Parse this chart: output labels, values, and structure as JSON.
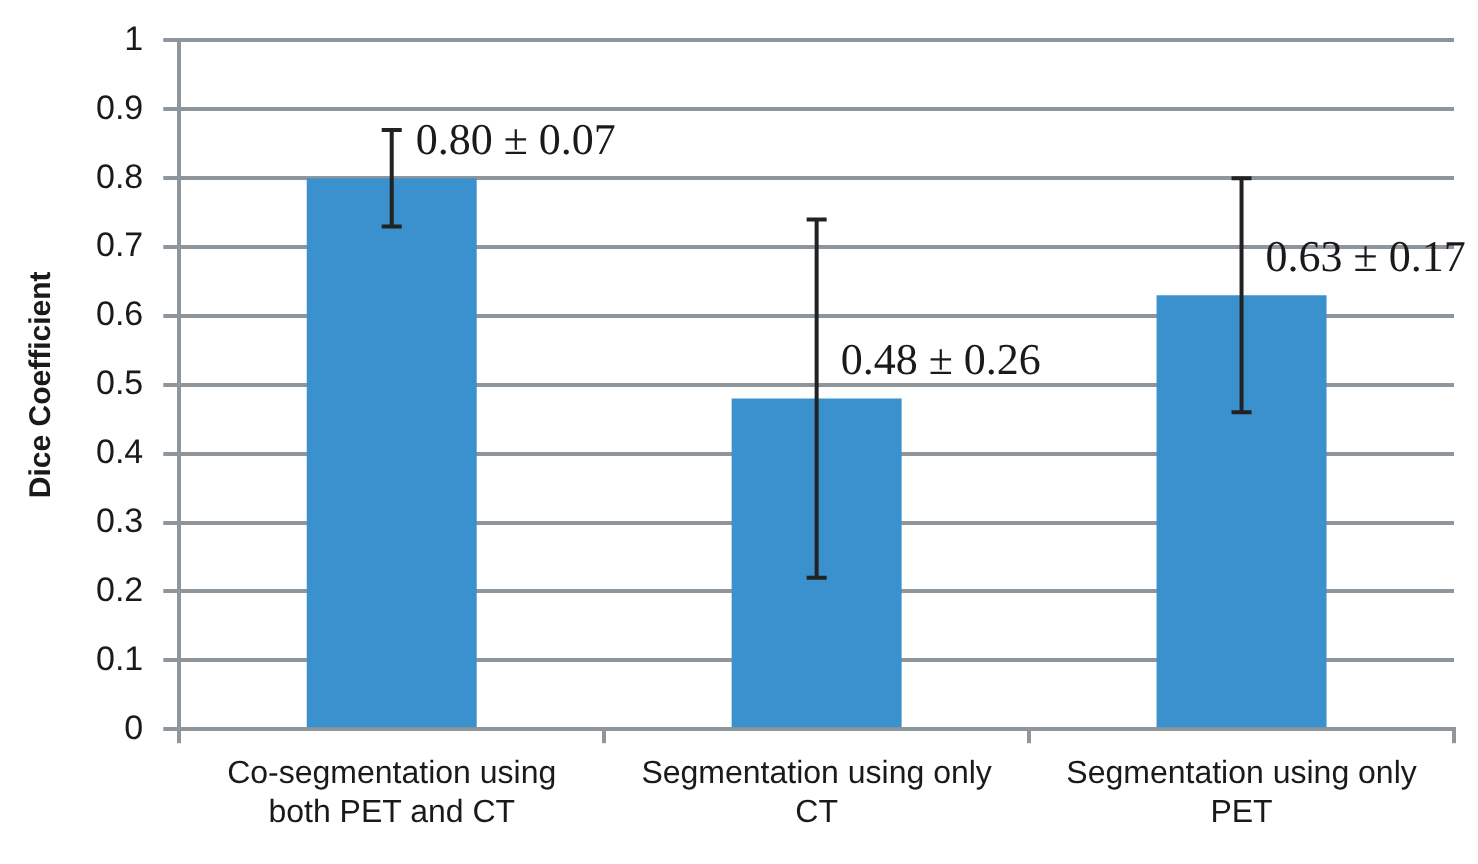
{
  "chart_data": {
    "type": "bar",
    "ylabel": "Dice Coefficient",
    "categories": [
      "Co-segmentation using both PET and CT",
      "Segmentation using only CT",
      "Segmentation using only PET"
    ],
    "values": [
      0.8,
      0.48,
      0.63
    ],
    "color": "#3a91cd",
    "errors": [
      0.07,
      0.26,
      0.17
    ],
    "value_labels": [
      "0.80 ± 0.07",
      "0.48 ± 0.26",
      "0.63 ± 0.17"
    ],
    "ylim": [
      0,
      1
    ],
    "yticks": [
      0,
      0.1,
      0.2,
      0.3,
      0.4,
      0.5,
      0.6,
      0.7,
      0.8,
      0.9,
      1
    ],
    "grid": "y"
  }
}
